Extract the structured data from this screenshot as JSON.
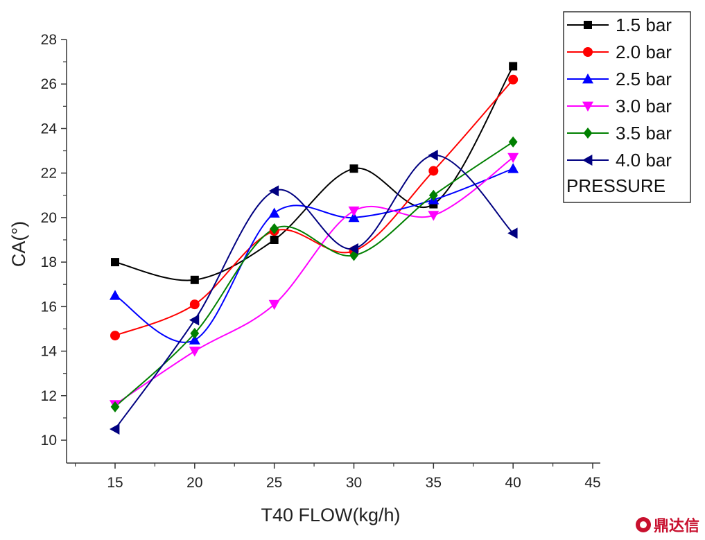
{
  "chart_data": {
    "type": "line",
    "title": "",
    "xlabel": "T40 FLOW(kg/h)",
    "ylabel": "CA(°)",
    "xlim": [
      12,
      45
    ],
    "ylim": [
      9,
      28
    ],
    "xticks": [
      15,
      20,
      25,
      30,
      35,
      40,
      45
    ],
    "yticks": [
      10,
      12,
      14,
      16,
      18,
      20,
      22,
      24,
      26,
      28
    ],
    "x": [
      15,
      20,
      25,
      30,
      35,
      40
    ],
    "grid": false,
    "legend_position": "top-right",
    "legend_title": "PRESSURE",
    "series": [
      {
        "name": "1.5 bar",
        "color": "#000000",
        "marker": "square",
        "values": [
          18.0,
          17.2,
          19.0,
          22.2,
          20.6,
          26.8
        ]
      },
      {
        "name": "2.0 bar",
        "color": "#ff0000",
        "marker": "circle",
        "values": [
          14.7,
          16.1,
          19.4,
          18.5,
          22.1,
          26.2
        ]
      },
      {
        "name": "2.5 bar",
        "color": "#0000ff",
        "marker": "triangle-up",
        "values": [
          16.5,
          14.5,
          20.2,
          20.0,
          20.8,
          22.2
        ]
      },
      {
        "name": "3.0 bar",
        "color": "#ff00ff",
        "marker": "triangle-down",
        "values": [
          11.6,
          14.0,
          16.1,
          20.3,
          20.1,
          22.7
        ]
      },
      {
        "name": "3.5 bar",
        "color": "#008000",
        "marker": "diamond",
        "values": [
          11.5,
          14.8,
          19.5,
          18.3,
          21.0,
          23.4
        ]
      },
      {
        "name": "4.0 bar",
        "color": "#000080",
        "marker": "triangle-left",
        "values": [
          10.5,
          15.4,
          21.2,
          18.6,
          22.8,
          19.3
        ]
      }
    ]
  },
  "watermark": {
    "text": "鼎达信",
    "color": "#c8102e"
  }
}
